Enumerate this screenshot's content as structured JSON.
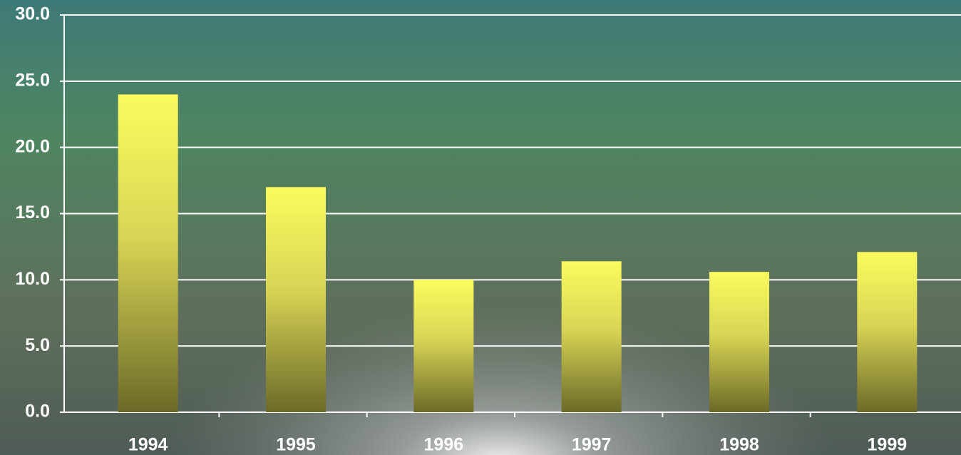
{
  "chart_data": {
    "type": "bar",
    "categories": [
      "1994",
      "1995",
      "1996",
      "1997",
      "1998",
      "1999"
    ],
    "values": [
      24.0,
      17.0,
      10.0,
      11.4,
      10.6,
      12.1
    ],
    "color": "#fbfb5e",
    "ylim": [
      0,
      30
    ],
    "yticks": [
      {
        "value": 0,
        "label": "0.0"
      },
      {
        "value": 5,
        "label": "5.0"
      },
      {
        "value": 10,
        "label": "10.0"
      },
      {
        "value": 15,
        "label": "15.0"
      },
      {
        "value": 20,
        "label": "20.0"
      },
      {
        "value": 25,
        "label": "25.0"
      },
      {
        "value": 30,
        "label": "30.0"
      }
    ],
    "grid": true
  }
}
